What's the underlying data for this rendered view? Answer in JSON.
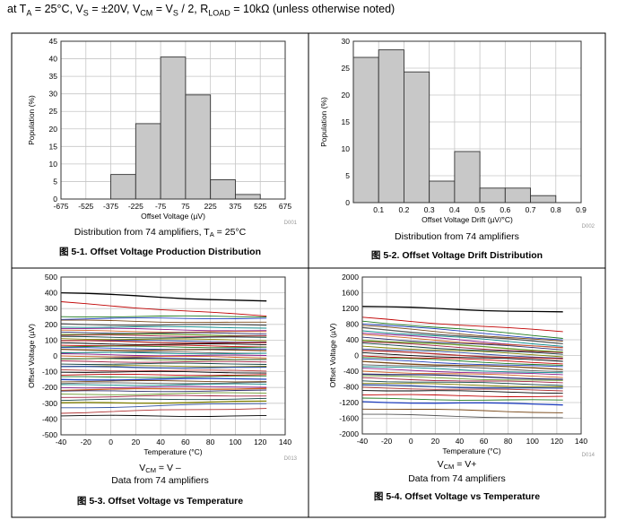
{
  "header": {
    "at": "at T",
    "ta_sub": "A",
    "ta_val": " = 25°C, V",
    "vs_sub": "S",
    "vs_val": " = ±20V, V",
    "vcm_sub": "CM",
    "vcm_mid": " = V",
    "vs2_sub": "S",
    "vs2_val": " / 2, R",
    "rl_sub": "LOAD",
    "rl_val": " = 10k",
    "omega": "Ω",
    "note": " (unless otherwise noted)"
  },
  "colors": {
    "bar_fill": "#c8c8c8",
    "bar_stroke": "#333333",
    "grid": "#c6c6c6",
    "frame": "#333333"
  },
  "chart_data": [
    {
      "id": "fig-5-1",
      "type": "bar",
      "categories": [
        -600,
        -450,
        -300,
        -150,
        0,
        150,
        300,
        450,
        600
      ],
      "values": [
        0,
        0,
        7,
        21.5,
        40.5,
        29.7,
        5.5,
        1.3,
        0
      ],
      "xticks": [
        "-675",
        "-525",
        "-375",
        "-225",
        "-75",
        "75",
        "225",
        "375",
        "525",
        "675"
      ],
      "yticks": [
        "0",
        "5",
        "10",
        "15",
        "20",
        "25",
        "30",
        "35",
        "40",
        "45"
      ],
      "ylim": [
        0,
        45
      ],
      "xlim": [
        -675,
        675
      ],
      "xlabel": "Offset Voltage (µV)",
      "ylabel": "Population (%)",
      "code": "D001",
      "note_main": "Distribution from 74 amplifiers, T",
      "note_sub": "A",
      "note_tail": " = 25°C",
      "caption_num": "5-1.",
      "caption": "Offset Voltage Production Distribution",
      "grid": true
    },
    {
      "id": "fig-5-2",
      "type": "bar",
      "categories": [
        0.05,
        0.15,
        0.25,
        0.35,
        0.45,
        0.55,
        0.65,
        0.75,
        0.85
      ],
      "values": [
        27,
        28.4,
        24.3,
        4,
        9.5,
        2.7,
        2.7,
        1.3,
        0
      ],
      "xticks": [
        "0.1",
        "0.2",
        "0.3",
        "0.4",
        "0.5",
        "0.6",
        "0.7",
        "0.8",
        "0.9"
      ],
      "yticks": [
        "0",
        "5",
        "10",
        "15",
        "20",
        "25",
        "30"
      ],
      "ylim": [
        0,
        30
      ],
      "xlim": [
        0,
        0.9
      ],
      "xlabel": "Offset Voltage Drift (µV/°C)",
      "ylabel": "Population (%)",
      "code": "D002",
      "note_main": "Distribution from 74 amplifiers",
      "caption_num": "5-2.",
      "caption": "Offset Voltage Drift Distribution",
      "grid": true
    },
    {
      "id": "fig-5-3",
      "type": "line",
      "x": [
        -40,
        -20,
        0,
        20,
        40,
        60,
        80,
        100,
        125
      ],
      "series_start": [
        400,
        340,
        250,
        235,
        225,
        200,
        185,
        175,
        160,
        150,
        140,
        130,
        120,
        110,
        100,
        95,
        80,
        70,
        60,
        50,
        40,
        25,
        20,
        10,
        0,
        -15,
        -20,
        -35,
        -50,
        -65,
        -70,
        -90,
        -100,
        -120,
        -135,
        -150,
        -160,
        -175,
        -185,
        -200,
        -215,
        -225,
        -245,
        -260,
        -280,
        -300,
        -330,
        -360,
        -380
      ],
      "series_end": [
        345,
        250,
        250,
        240,
        210,
        195,
        180,
        160,
        150,
        140,
        130,
        125,
        115,
        100,
        90,
        80,
        70,
        60,
        55,
        40,
        35,
        20,
        15,
        0,
        -10,
        -20,
        -25,
        -40,
        -50,
        -65,
        -75,
        -95,
        -105,
        -120,
        -130,
        -145,
        -160,
        -170,
        -180,
        -195,
        -205,
        -220,
        -235,
        -250,
        -270,
        -290,
        -300,
        -330,
        -380
      ],
      "xticks": [
        "-40",
        "-20",
        "0",
        "20",
        "40",
        "60",
        "80",
        "100",
        "120",
        "140"
      ],
      "yticks": [
        "-500",
        "-400",
        "-300",
        "-200",
        "-100",
        "0",
        "100",
        "200",
        "300",
        "400",
        "500"
      ],
      "xlim": [
        -40,
        140
      ],
      "ylim": [
        -500,
        500
      ],
      "xlabel": "Temperature (°C)",
      "ylabel": "Offset Voltage (µV)",
      "code": "D013",
      "note_vcm": "V",
      "note_vcm_sub": "CM",
      "note_vcm_tail": " = V",
      "note_vcm_sign": "–",
      "note_main": "Data from 74 amplifiers",
      "caption_num": "5-3.",
      "caption": "Offset Voltage vs Temperature",
      "grid": true
    },
    {
      "id": "fig-5-4",
      "type": "line",
      "x": [
        -40,
        -20,
        0,
        20,
        40,
        60,
        80,
        100,
        125
      ],
      "series_start": [
        1250,
        960,
        880,
        820,
        760,
        700,
        640,
        580,
        520,
        460,
        400,
        350,
        300,
        240,
        180,
        120,
        60,
        0,
        -40,
        -100,
        -160,
        -220,
        -280,
        -340,
        -400,
        -460,
        -520,
        -580,
        -640,
        -700,
        -760,
        -820,
        -880,
        -1000,
        -1100,
        -1180,
        -1350,
        -1500
      ],
      "series_end": [
        1100,
        600,
        450,
        400,
        350,
        300,
        250,
        200,
        180,
        150,
        100,
        60,
        20,
        -20,
        -60,
        -100,
        -150,
        -200,
        -250,
        -300,
        -350,
        -400,
        -450,
        -500,
        -550,
        -600,
        -650,
        -700,
        -750,
        -800,
        -850,
        -900,
        -950,
        -1050,
        -1150,
        -1250,
        -1450,
        -1600
      ],
      "xticks": [
        "-40",
        "-20",
        "0",
        "20",
        "40",
        "60",
        "80",
        "100",
        "120",
        "140"
      ],
      "yticks": [
        "-2000",
        "-1600",
        "-1200",
        "-800",
        "-400",
        "0",
        "400",
        "800",
        "1200",
        "1600",
        "2000"
      ],
      "xlim": [
        -40,
        140
      ],
      "ylim": [
        -2000,
        2000
      ],
      "xlabel": "Temperature (°C)",
      "ylabel": "Offset Voltage (µV)",
      "code": "D014",
      "note_vcm": "V",
      "note_vcm_sub": "CM",
      "note_vcm_tail": " = V+",
      "note_main": "Data from 74 amplifiers",
      "caption_num": "5-4.",
      "caption": "Offset Voltage vs Temperature",
      "grid": true
    }
  ],
  "line_colors": [
    "#000000",
    "#c00000",
    "#1f7a1f",
    "#1f3fbf",
    "#7a4a1a",
    "#5a5a5a",
    "#0a8a8a",
    "#8a1a8a",
    "#d06020",
    "#2a2a6a",
    "#6a9a2a",
    "#a02040",
    "#104040",
    "#808000",
    "#3050a0",
    "#b03030"
  ],
  "caption_prefix": "图"
}
